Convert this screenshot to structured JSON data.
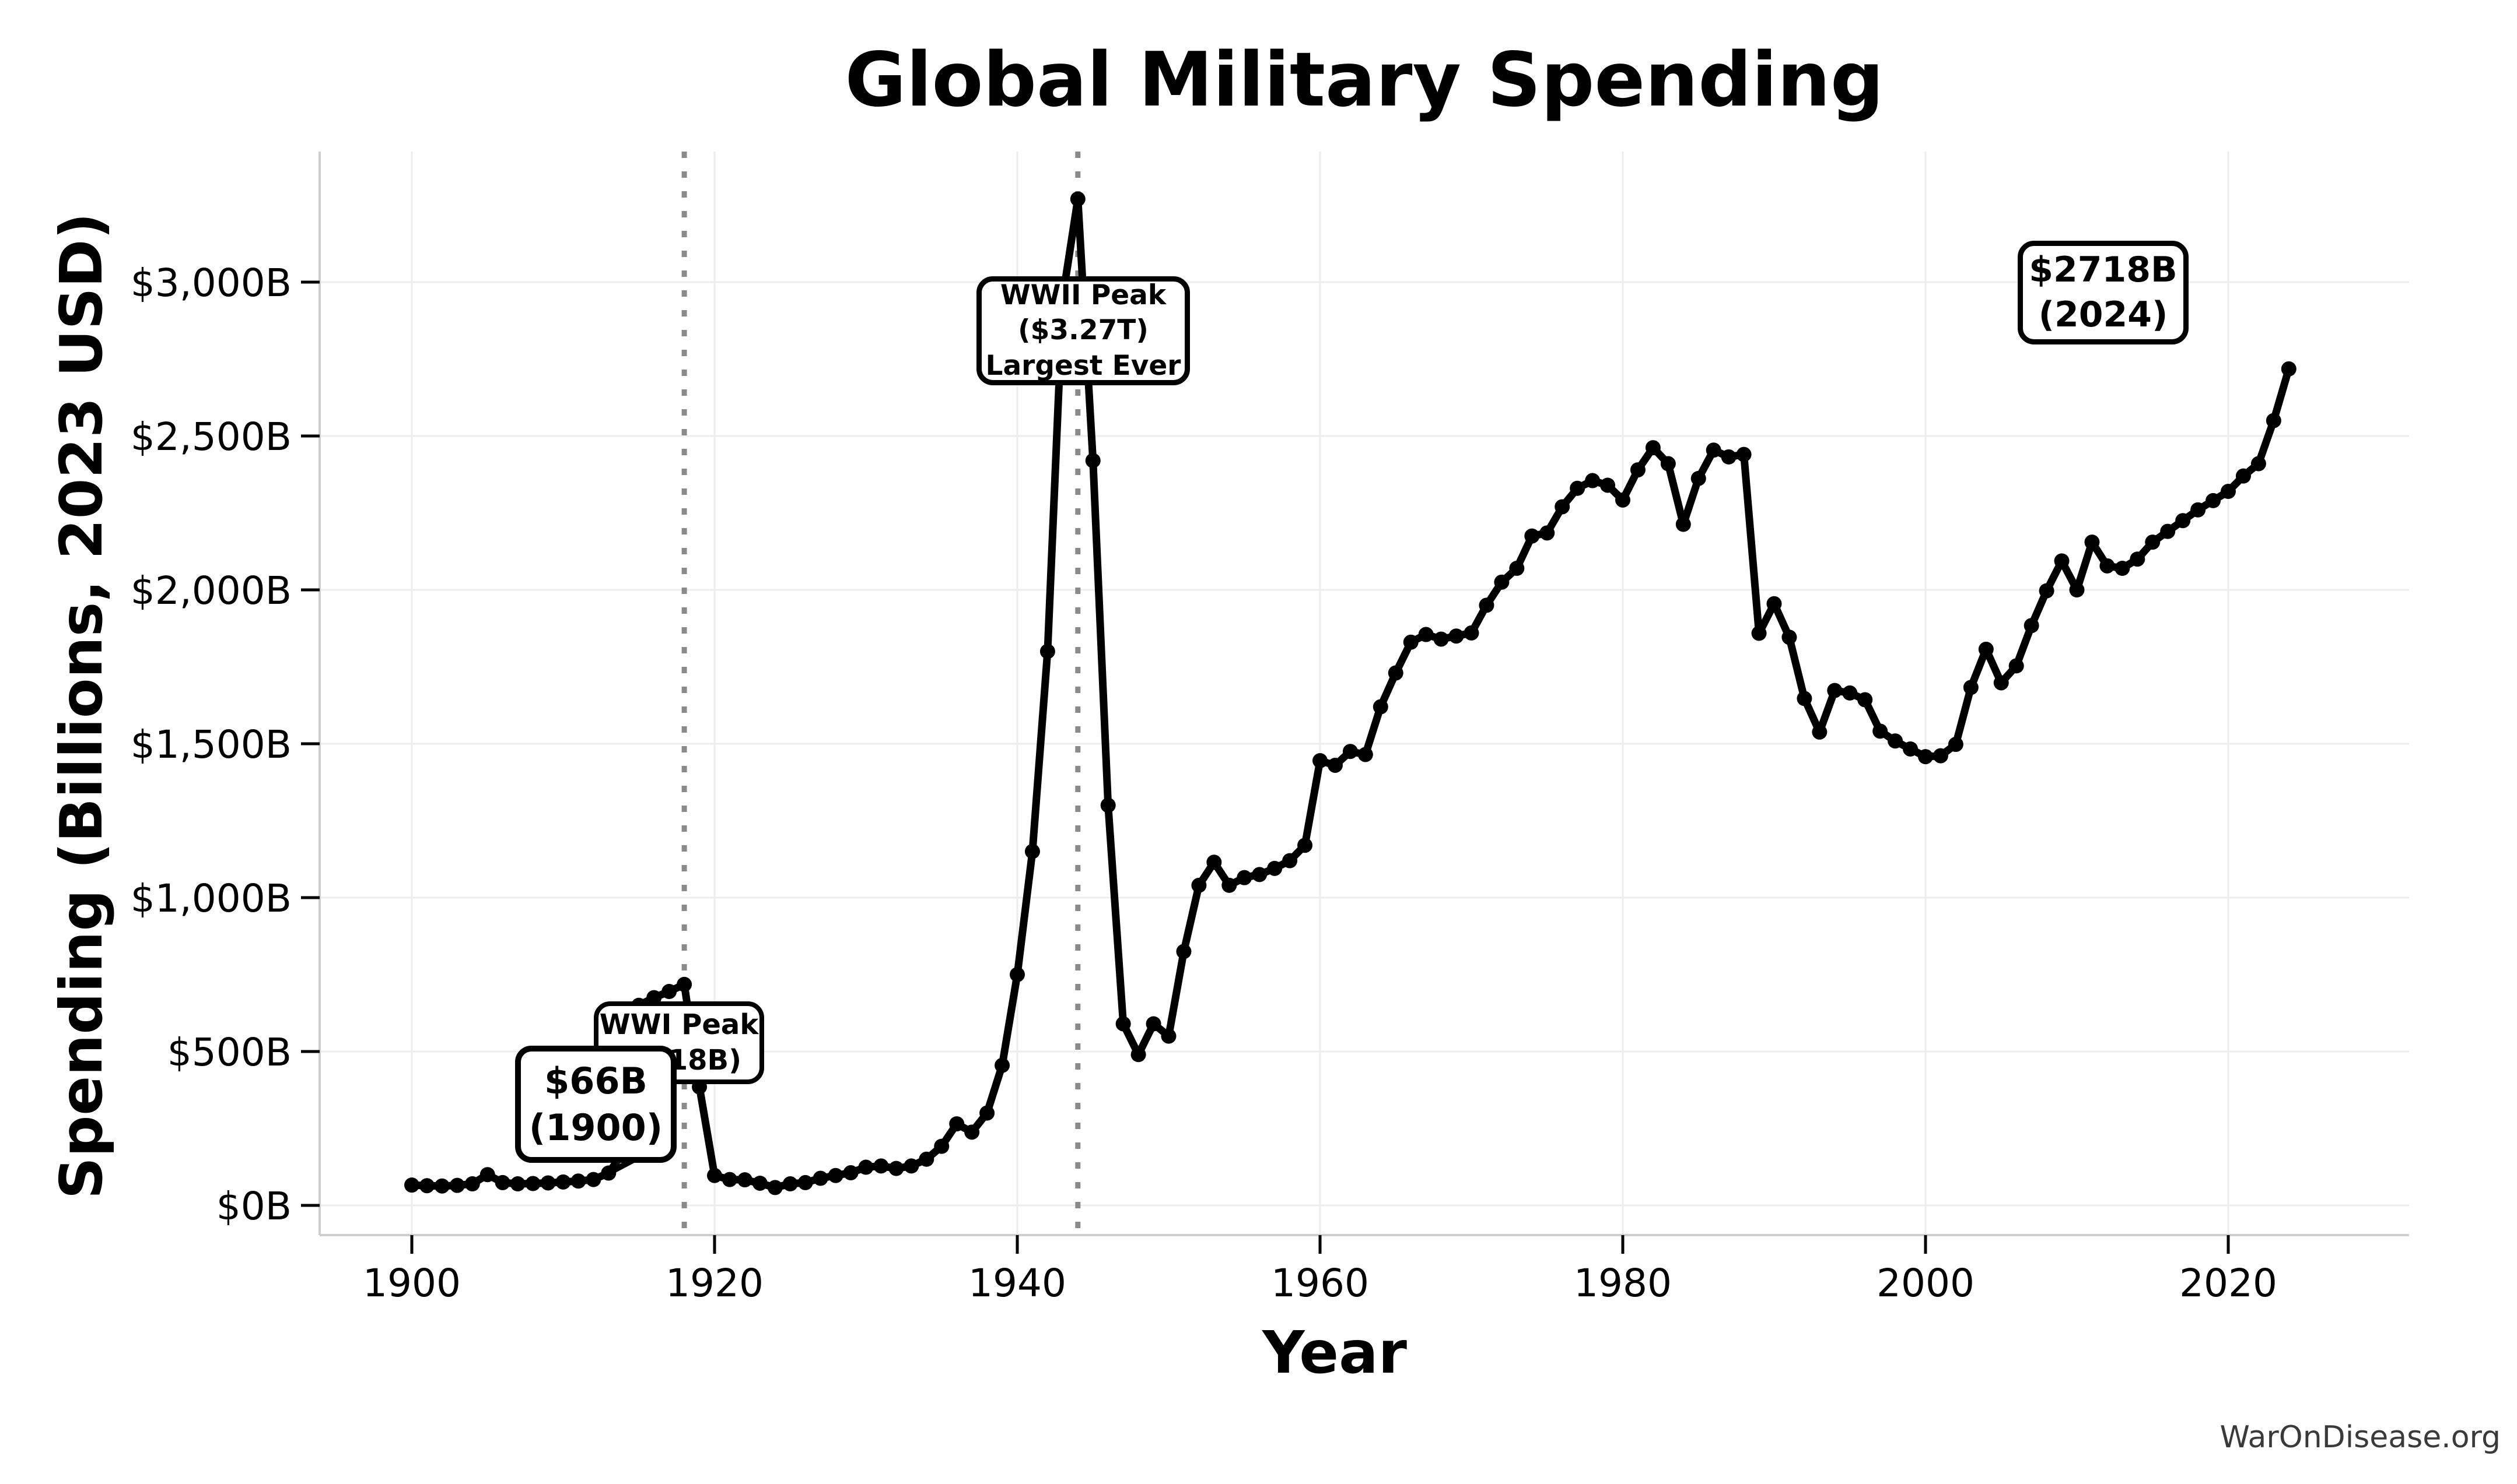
{
  "page": {
    "title": "Global Military Spending",
    "watermark": "WarOnDisease.org"
  },
  "chart_data": {
    "type": "line",
    "title": "Global Military Spending",
    "xlabel": "Year",
    "ylabel": "Spending (Billions, 2023 USD)",
    "units": "Billions of 2023 USD",
    "xlim": [
      1894,
      2032
    ],
    "ylim": [
      0,
      3400
    ],
    "grid": true,
    "legend": false,
    "line_color": "#000000",
    "marker": "circle",
    "years": [
      1900,
      1901,
      1902,
      1903,
      1904,
      1905,
      1906,
      1907,
      1908,
      1909,
      1910,
      1911,
      1912,
      1913,
      1914,
      1915,
      1916,
      1917,
      1918,
      1919,
      1920,
      1921,
      1922,
      1923,
      1924,
      1925,
      1926,
      1927,
      1928,
      1929,
      1930,
      1931,
      1932,
      1933,
      1934,
      1935,
      1936,
      1937,
      1938,
      1939,
      1940,
      1941,
      1942,
      1943,
      1944,
      1945,
      1946,
      1947,
      1948,
      1949,
      1950,
      1951,
      1952,
      1953,
      1954,
      1955,
      1956,
      1957,
      1958,
      1959,
      1960,
      1961,
      1962,
      1963,
      1964,
      1965,
      1966,
      1967,
      1968,
      1969,
      1970,
      1971,
      1972,
      1973,
      1974,
      1975,
      1976,
      1977,
      1978,
      1979,
      1980,
      1981,
      1982,
      1983,
      1984,
      1985,
      1986,
      1987,
      1988,
      1989,
      1990,
      1991,
      1992,
      1993,
      1994,
      1995,
      1996,
      1997,
      1998,
      1999,
      2000,
      2001,
      2002,
      2003,
      2004,
      2005,
      2006,
      2007,
      2008,
      2009,
      2010,
      2011,
      2012,
      2013,
      2014,
      2015,
      2016,
      2017,
      2018,
      2019,
      2020,
      2021,
      2022,
      2023,
      2024
    ],
    "values": [
      66,
      64,
      63,
      65,
      70,
      100,
      74,
      70,
      71,
      73,
      76,
      79,
      84,
      105,
      175,
      650,
      675,
      695,
      718,
      385,
      97,
      84,
      83,
      72,
      58,
      70,
      74,
      88,
      97,
      106,
      124,
      128,
      120,
      128,
      150,
      192,
      265,
      238,
      300,
      455,
      750,
      1150,
      1800,
      2950,
      3270,
      2420,
      1300,
      590,
      490,
      590,
      550,
      825,
      1040,
      1115,
      1040,
      1065,
      1075,
      1095,
      1120,
      1170,
      1445,
      1430,
      1475,
      1465,
      1620,
      1730,
      1830,
      1855,
      1840,
      1850,
      1860,
      1950,
      2025,
      2070,
      2175,
      2185,
      2270,
      2330,
      2355,
      2340,
      2292,
      2390,
      2462,
      2410,
      2213,
      2362,
      2454,
      2432,
      2440,
      1859,
      1955,
      1846,
      1647,
      1538,
      1673,
      1665,
      1643,
      1541,
      1509,
      1483,
      1458,
      1461,
      1498,
      1683,
      1807,
      1698,
      1753,
      1884,
      1997,
      2094,
      2000,
      2155,
      2078,
      2070,
      2100,
      2155,
      2190,
      2225,
      2260,
      2290,
      2320,
      2370,
      2410,
      2550,
      2718
    ],
    "x_ticks": [
      {
        "value": 1900,
        "label": "1900"
      },
      {
        "value": 1920,
        "label": "1920"
      },
      {
        "value": 1940,
        "label": "1940"
      },
      {
        "value": 1960,
        "label": "1960"
      },
      {
        "value": 1980,
        "label": "1980"
      },
      {
        "value": 2000,
        "label": "2000"
      },
      {
        "value": 2020,
        "label": "2020"
      }
    ],
    "y_ticks": [
      {
        "value": 0,
        "label": "$0B"
      },
      {
        "value": 500,
        "label": "$500B"
      },
      {
        "value": 1000,
        "label": "$1,000B"
      },
      {
        "value": 1500,
        "label": "$1,500B"
      },
      {
        "value": 2000,
        "label": "$2,000B"
      },
      {
        "value": 2500,
        "label": "$2,500B"
      },
      {
        "value": 3000,
        "label": "$3,000B"
      }
    ],
    "vlines": [
      {
        "year": 1918,
        "style": "dotted",
        "color": "#8a8a8a"
      },
      {
        "year": 1944,
        "style": "dotted",
        "color": "#8a8a8a"
      }
    ],
    "annotations": [
      {
        "id": "start-1900",
        "lines": [
          "$66B",
          "(1900)"
        ],
        "points_to": {
          "year": 1913,
          "value": 105
        }
      },
      {
        "id": "wwi-peak",
        "lines": [
          "WWI Peak",
          "($718B)"
        ],
        "points_to": {
          "year": 1918,
          "value": 718
        }
      },
      {
        "id": "wwii-peak",
        "lines": [
          "WWII Peak",
          "($3.27T)",
          "Largest Ever"
        ],
        "points_to": {
          "year": 1944,
          "value": 3270
        }
      },
      {
        "id": "record-2024",
        "lines": [
          "$2718B",
          "(2024)"
        ],
        "points_to": {
          "year": 2024,
          "value": 2718
        }
      }
    ],
    "colors": {
      "line": "#000000",
      "grid": "#ededed",
      "spine": "#cfcfcf",
      "tick": "#000000",
      "vline": "#8a8a8a",
      "background": "#ffffff",
      "watermark": "#3a3a3a"
    }
  }
}
